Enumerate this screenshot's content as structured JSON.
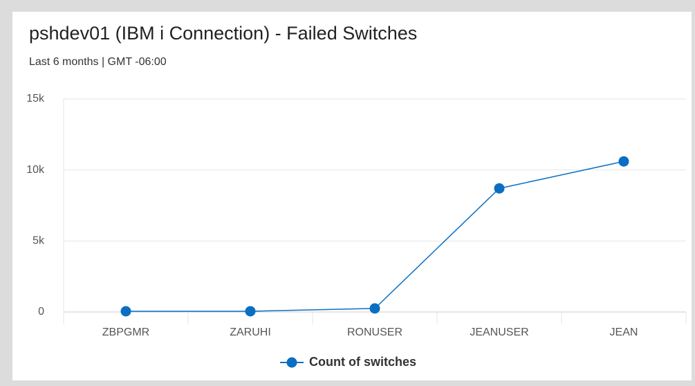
{
  "chart_data": {
    "type": "line",
    "title": "pshdev01 (IBM i Connection) - Failed Switches",
    "subtitle": "Last 6 months | GMT -06:00",
    "categories": [
      "ZBPGMR",
      "ZARUHI",
      "RONUSER",
      "JEANUSER",
      "JEAN"
    ],
    "series": [
      {
        "name": "Count of switches",
        "color": "#0a6fc2",
        "values": [
          50,
          50,
          250,
          8700,
          10600
        ]
      }
    ],
    "ylim": [
      0,
      15000
    ],
    "yticks": [
      0,
      {
        "value": 5000,
        "label": "5k"
      },
      {
        "value": 10000,
        "label": "10k"
      },
      {
        "value": 15000,
        "label": "15k"
      }
    ],
    "grid": true,
    "legend": "bottom"
  }
}
